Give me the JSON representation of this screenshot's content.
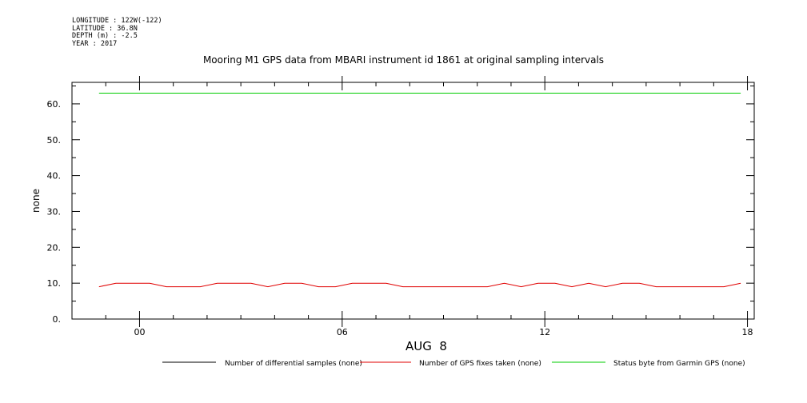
{
  "meta": {
    "longitude": "LONGITUDE : 122W(-122)",
    "latitude": "LATITUDE : 36.8N",
    "depth": "DEPTH (m) : -2.5",
    "year": "YEAR : 2017"
  },
  "chart_data": {
    "type": "line",
    "title": "Mooring M1 GPS data from MBARI instrument id 1861 at original sampling intervals",
    "ylabel": "none",
    "xlabel": "AUG  8",
    "ylim": [
      0,
      66
    ],
    "xlim": [
      -2,
      18.2
    ],
    "y_ticks": [
      0,
      10,
      20,
      30,
      40,
      50,
      60
    ],
    "y_tick_labels": [
      "0.",
      "10.",
      "20.",
      "30.",
      "40.",
      "50.",
      "60."
    ],
    "x_ticks": [
      0,
      6,
      12,
      18
    ],
    "x_tick_labels": [
      "00",
      "06",
      "12",
      "18"
    ],
    "grid": false,
    "legend_position": "bottom",
    "series": [
      {
        "name": "Number of differential samples (none)",
        "color": "#000000",
        "x": [],
        "values": []
      },
      {
        "name": "Number of GPS fixes taken (none)",
        "color": "#e00000",
        "x": [
          -1.2,
          -0.7,
          0.3,
          0.8,
          1.8,
          2.3,
          3.3,
          3.8,
          4.3,
          4.8,
          5.3,
          5.8,
          6.3,
          7.3,
          7.8,
          8.8,
          9.8,
          10.3,
          10.8,
          11.3,
          11.8,
          12.3,
          12.8,
          13.3,
          13.8,
          14.3,
          14.8,
          15.3,
          16.3,
          17.3,
          17.8
        ],
        "values": [
          9,
          10,
          10,
          9,
          9,
          10,
          10,
          9,
          10,
          10,
          9,
          9,
          10,
          10,
          9,
          9,
          9,
          9,
          10,
          9,
          10,
          10,
          9,
          10,
          9,
          10,
          10,
          9,
          9,
          9,
          10
        ]
      },
      {
        "name": "Status byte from Garmin GPS (none)",
        "color": "#00cc00",
        "x": [
          -1.2,
          17.8
        ],
        "values": [
          63,
          63
        ]
      }
    ]
  }
}
